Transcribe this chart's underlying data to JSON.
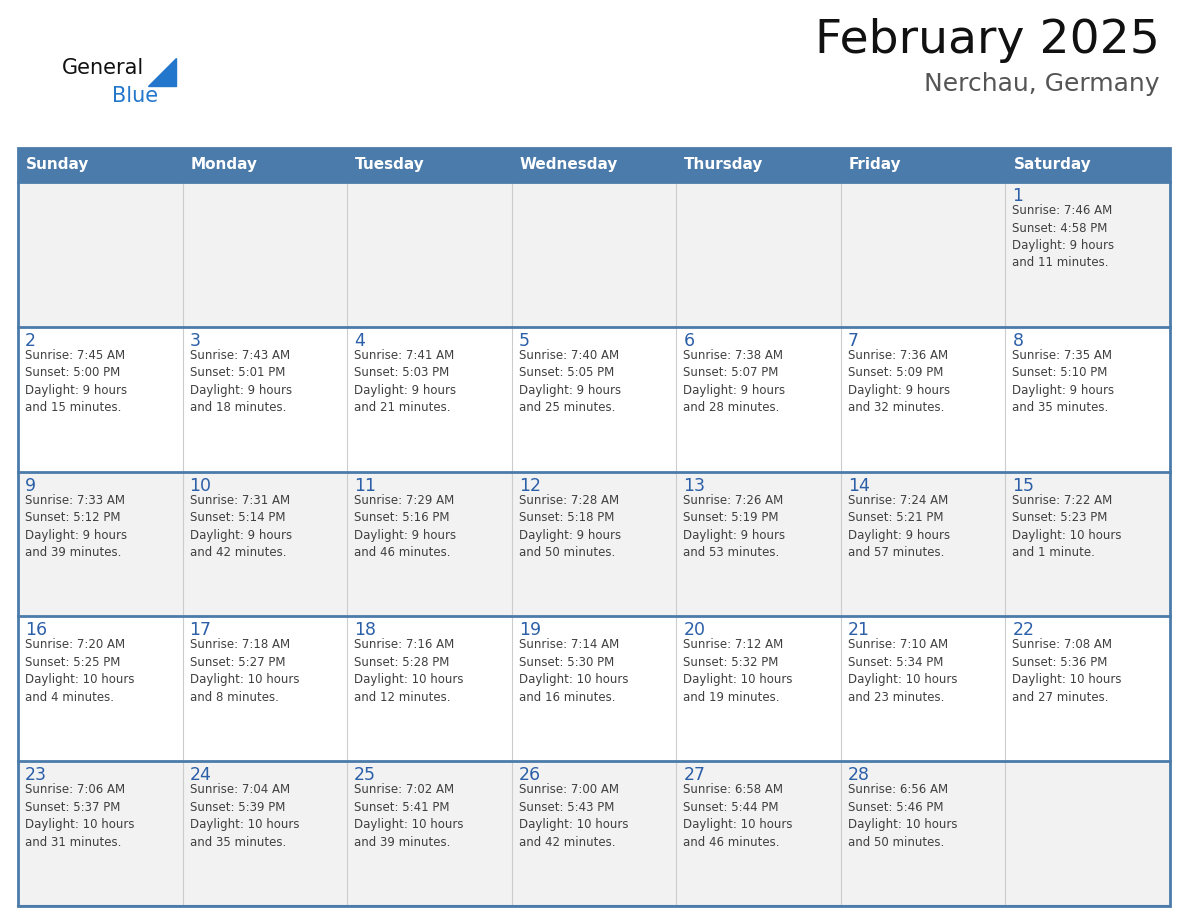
{
  "title": "February 2025",
  "subtitle": "Nerchau, Germany",
  "days_of_week": [
    "Sunday",
    "Monday",
    "Tuesday",
    "Wednesday",
    "Thursday",
    "Friday",
    "Saturday"
  ],
  "header_bg": "#4a7baa",
  "header_text": "#ffffff",
  "row_bg": [
    "#f2f2f2",
    "#ffffff",
    "#f2f2f2",
    "#ffffff",
    "#f2f2f2"
  ],
  "day_number_color": "#2b5fa8",
  "cell_text_color": "#404040",
  "border_color": "#4a7baa",
  "thin_line_color": "#cccccc",
  "title_color": "#111111",
  "subtitle_color": "#555555",
  "logo_general_color": "#111111",
  "logo_blue_color": "#2277cc",
  "logo_triangle_color": "#2277cc",
  "weeks": [
    [
      {
        "day": null,
        "text": ""
      },
      {
        "day": null,
        "text": ""
      },
      {
        "day": null,
        "text": ""
      },
      {
        "day": null,
        "text": ""
      },
      {
        "day": null,
        "text": ""
      },
      {
        "day": null,
        "text": ""
      },
      {
        "day": 1,
        "text": "Sunrise: 7:46 AM\nSunset: 4:58 PM\nDaylight: 9 hours\nand 11 minutes."
      }
    ],
    [
      {
        "day": 2,
        "text": "Sunrise: 7:45 AM\nSunset: 5:00 PM\nDaylight: 9 hours\nand 15 minutes."
      },
      {
        "day": 3,
        "text": "Sunrise: 7:43 AM\nSunset: 5:01 PM\nDaylight: 9 hours\nand 18 minutes."
      },
      {
        "day": 4,
        "text": "Sunrise: 7:41 AM\nSunset: 5:03 PM\nDaylight: 9 hours\nand 21 minutes."
      },
      {
        "day": 5,
        "text": "Sunrise: 7:40 AM\nSunset: 5:05 PM\nDaylight: 9 hours\nand 25 minutes."
      },
      {
        "day": 6,
        "text": "Sunrise: 7:38 AM\nSunset: 5:07 PM\nDaylight: 9 hours\nand 28 minutes."
      },
      {
        "day": 7,
        "text": "Sunrise: 7:36 AM\nSunset: 5:09 PM\nDaylight: 9 hours\nand 32 minutes."
      },
      {
        "day": 8,
        "text": "Sunrise: 7:35 AM\nSunset: 5:10 PM\nDaylight: 9 hours\nand 35 minutes."
      }
    ],
    [
      {
        "day": 9,
        "text": "Sunrise: 7:33 AM\nSunset: 5:12 PM\nDaylight: 9 hours\nand 39 minutes."
      },
      {
        "day": 10,
        "text": "Sunrise: 7:31 AM\nSunset: 5:14 PM\nDaylight: 9 hours\nand 42 minutes."
      },
      {
        "day": 11,
        "text": "Sunrise: 7:29 AM\nSunset: 5:16 PM\nDaylight: 9 hours\nand 46 minutes."
      },
      {
        "day": 12,
        "text": "Sunrise: 7:28 AM\nSunset: 5:18 PM\nDaylight: 9 hours\nand 50 minutes."
      },
      {
        "day": 13,
        "text": "Sunrise: 7:26 AM\nSunset: 5:19 PM\nDaylight: 9 hours\nand 53 minutes."
      },
      {
        "day": 14,
        "text": "Sunrise: 7:24 AM\nSunset: 5:21 PM\nDaylight: 9 hours\nand 57 minutes."
      },
      {
        "day": 15,
        "text": "Sunrise: 7:22 AM\nSunset: 5:23 PM\nDaylight: 10 hours\nand 1 minute."
      }
    ],
    [
      {
        "day": 16,
        "text": "Sunrise: 7:20 AM\nSunset: 5:25 PM\nDaylight: 10 hours\nand 4 minutes."
      },
      {
        "day": 17,
        "text": "Sunrise: 7:18 AM\nSunset: 5:27 PM\nDaylight: 10 hours\nand 8 minutes."
      },
      {
        "day": 18,
        "text": "Sunrise: 7:16 AM\nSunset: 5:28 PM\nDaylight: 10 hours\nand 12 minutes."
      },
      {
        "day": 19,
        "text": "Sunrise: 7:14 AM\nSunset: 5:30 PM\nDaylight: 10 hours\nand 16 minutes."
      },
      {
        "day": 20,
        "text": "Sunrise: 7:12 AM\nSunset: 5:32 PM\nDaylight: 10 hours\nand 19 minutes."
      },
      {
        "day": 21,
        "text": "Sunrise: 7:10 AM\nSunset: 5:34 PM\nDaylight: 10 hours\nand 23 minutes."
      },
      {
        "day": 22,
        "text": "Sunrise: 7:08 AM\nSunset: 5:36 PM\nDaylight: 10 hours\nand 27 minutes."
      }
    ],
    [
      {
        "day": 23,
        "text": "Sunrise: 7:06 AM\nSunset: 5:37 PM\nDaylight: 10 hours\nand 31 minutes."
      },
      {
        "day": 24,
        "text": "Sunrise: 7:04 AM\nSunset: 5:39 PM\nDaylight: 10 hours\nand 35 minutes."
      },
      {
        "day": 25,
        "text": "Sunrise: 7:02 AM\nSunset: 5:41 PM\nDaylight: 10 hours\nand 39 minutes."
      },
      {
        "day": 26,
        "text": "Sunrise: 7:00 AM\nSunset: 5:43 PM\nDaylight: 10 hours\nand 42 minutes."
      },
      {
        "day": 27,
        "text": "Sunrise: 6:58 AM\nSunset: 5:44 PM\nDaylight: 10 hours\nand 46 minutes."
      },
      {
        "day": 28,
        "text": "Sunrise: 6:56 AM\nSunset: 5:46 PM\nDaylight: 10 hours\nand 50 minutes."
      },
      {
        "day": null,
        "text": ""
      }
    ]
  ]
}
